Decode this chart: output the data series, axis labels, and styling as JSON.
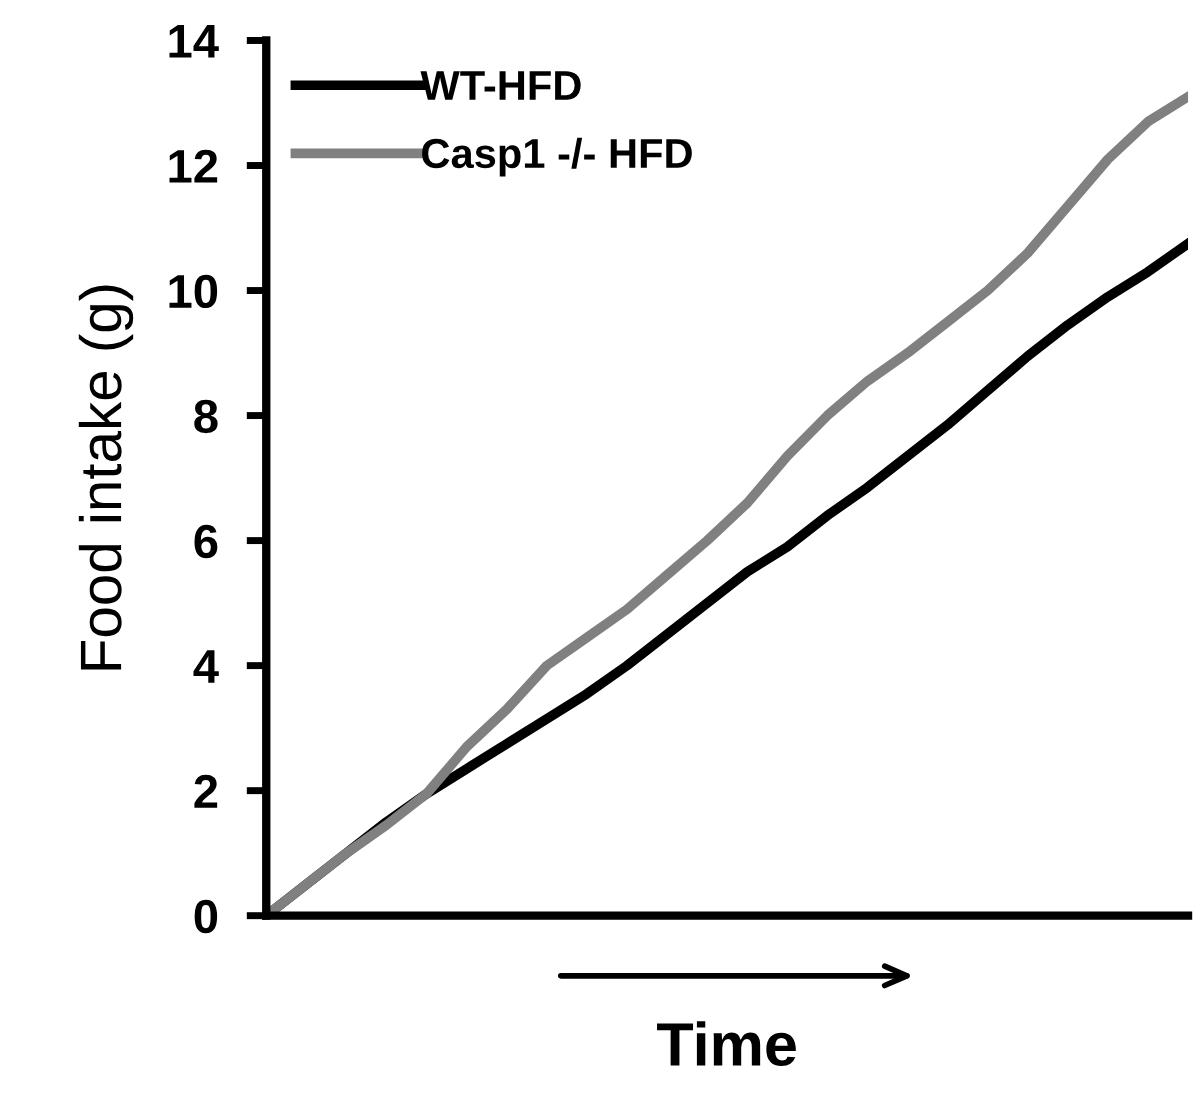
{
  "chart_data": {
    "type": "line",
    "xlabel": "Time",
    "ylabel": "Food intake (g)",
    "categories": [
      null,
      null,
      null,
      null,
      null,
      null,
      null,
      null,
      null,
      null,
      null,
      null,
      null,
      null,
      null,
      null,
      null,
      null,
      null,
      null,
      null,
      null,
      null,
      null
    ],
    "series": [
      {
        "name": "WT-HFD",
        "color": "#000000",
        "values": [
          0,
          0.5,
          1.0,
          1.5,
          1.95,
          2.35,
          2.75,
          3.15,
          3.55,
          4.0,
          4.5,
          5.0,
          5.5,
          5.9,
          6.4,
          6.85,
          7.35,
          7.85,
          8.4,
          8.95,
          9.45,
          9.9,
          10.3,
          10.75
        ]
      },
      {
        "name": "Casp1 -/- HFD",
        "color": "#808080",
        "values": [
          0,
          0.5,
          1.0,
          1.45,
          1.95,
          2.7,
          3.3,
          4.0,
          4.45,
          4.9,
          5.45,
          6.0,
          6.6,
          7.35,
          8.0,
          8.55,
          9.0,
          9.5,
          10.0,
          10.6,
          11.35,
          12.1,
          12.7,
          13.1
        ]
      }
    ],
    "ylim": [
      0,
      14
    ],
    "yticks": [
      0,
      2,
      4,
      6,
      8,
      10,
      12,
      14
    ],
    "grid": false,
    "legend": "top left",
    "tick_labels": "y",
    "marker": "none",
    "line_style": "solid"
  }
}
